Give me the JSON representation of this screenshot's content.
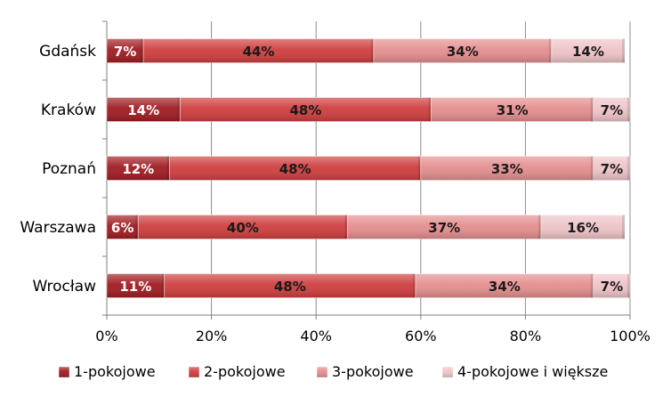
{
  "chart_data": {
    "type": "bar",
    "orientation": "horizontal",
    "stacked": "percent",
    "categories": [
      "Gdańsk",
      "Kraków",
      "Poznań",
      "Warszawa",
      "Wrocław"
    ],
    "series": [
      {
        "name": "1-pokojowe",
        "color": "#a01c22",
        "values": [
          7,
          14,
          12,
          6,
          11
        ],
        "labels": [
          "7%",
          "14%",
          "12%",
          "6%",
          "11%"
        ]
      },
      {
        "name": "2-pokojowe",
        "color": "#cf3e3e",
        "values": [
          44,
          48,
          48,
          40,
          48
        ],
        "labels": [
          "44%",
          "48%",
          "48%",
          "40%",
          "48%"
        ]
      },
      {
        "name": "3-pokojowe",
        "color": "#e48e8e",
        "values": [
          34,
          31,
          33,
          37,
          34
        ],
        "labels": [
          "34%",
          "31%",
          "33%",
          "37%",
          "34%"
        ]
      },
      {
        "name": "4-pokojowe i większe",
        "color": "#eec4c8",
        "values": [
          14,
          7,
          7,
          16,
          7
        ],
        "labels": [
          "14%",
          "7%",
          "7%",
          "16%",
          "7%"
        ]
      }
    ],
    "xlim": [
      0,
      100
    ],
    "x_ticks": [
      "0%",
      "20%",
      "40%",
      "60%",
      "80%",
      "100%"
    ],
    "grid": true,
    "legend_position": "bottom"
  }
}
